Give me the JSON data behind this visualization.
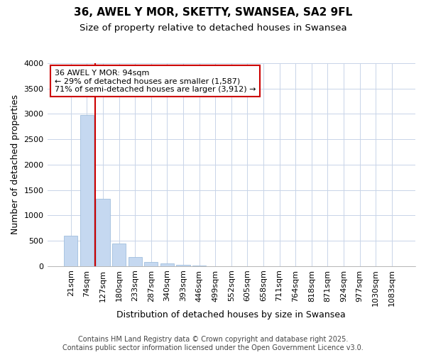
{
  "title_line1": "36, AWEL Y MOR, SKETTY, SWANSEA, SA2 9FL",
  "title_line2": "Size of property relative to detached houses in Swansea",
  "xlabel": "Distribution of detached houses by size in Swansea",
  "ylabel": "Number of detached properties",
  "categories": [
    "21sqm",
    "74sqm",
    "127sqm",
    "180sqm",
    "233sqm",
    "287sqm",
    "340sqm",
    "393sqm",
    "446sqm",
    "499sqm",
    "552sqm",
    "605sqm",
    "658sqm",
    "711sqm",
    "764sqm",
    "818sqm",
    "871sqm",
    "924sqm",
    "977sqm",
    "1030sqm",
    "1083sqm"
  ],
  "values": [
    600,
    2975,
    1330,
    440,
    175,
    75,
    45,
    25,
    5,
    2,
    1,
    0,
    0,
    0,
    0,
    0,
    0,
    0,
    0,
    0,
    0
  ],
  "bar_color": "#c5d8f0",
  "bar_edgecolor": "#a0bedd",
  "vline_color": "#cc0000",
  "vline_x": 1.5,
  "annotation_text": "36 AWEL Y MOR: 94sqm\n← 29% of detached houses are smaller (1,587)\n71% of semi-detached houses are larger (3,912) →",
  "annotation_box_edgecolor": "#cc0000",
  "ylim": [
    0,
    4000
  ],
  "yticks": [
    0,
    500,
    1000,
    1500,
    2000,
    2500,
    3000,
    3500,
    4000
  ],
  "plot_bg": "#ffffff",
  "grid_color": "#c8d4e8",
  "footer_text": "Contains HM Land Registry data © Crown copyright and database right 2025.\nContains public sector information licensed under the Open Government Licence v3.0.",
  "title_fontsize": 11,
  "subtitle_fontsize": 9.5,
  "axis_label_fontsize": 9,
  "tick_fontsize": 8,
  "footer_fontsize": 7,
  "ann_fontsize": 8
}
